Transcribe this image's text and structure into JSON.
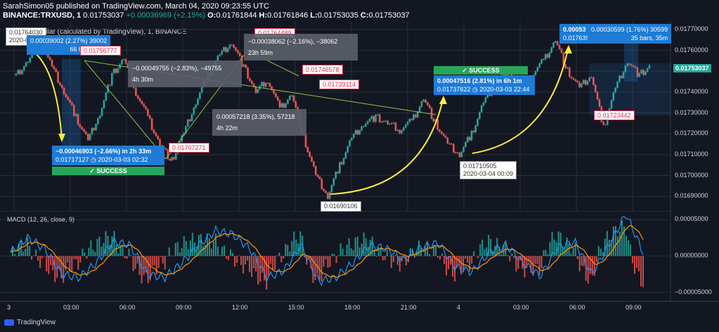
{
  "header": {
    "line1": "SarahSimon05 published on TradingView.com, March 04, 2020 09:23:55 UTC",
    "symbol": "BINANCE:TRXUSD, 1",
    "last": "0.01753037",
    "change": "+0.00036969 (+2.15%)",
    "o_label": "O:",
    "o": "0.01761844",
    "h_label": "H:",
    "h": "0.01761846",
    "l_label": "L:",
    "l": "0.01753035",
    "c_label": "C:",
    "c": "0.01753037",
    "chart_title": "ollar (calculated by TradingView), 1, BINANCE"
  },
  "price_tag": "0.01753037",
  "macd_label": "MACD (12, 26, close, 9)",
  "brand": "TradingView",
  "annotations": {
    "top_left_price": "0.01764030",
    "top_left_date": "2020-03-0",
    "box1_line1": "0.00039002 (2.27%) 39002",
    "box1_line2": "66 bars, 1h 6",
    "red1": "0.01756777",
    "gray1_a": "−0.00049755 (−2.83%), −49755",
    "gray1_b": "4h 30m",
    "red2": "0.01764489",
    "gray2_a": "−0.00038062 (−2.16%), −38062",
    "gray2_b": "23h 59m",
    "red3": "0.01746578",
    "red4": "0.01739114",
    "gray3_a": "0.00057218 (3.35%), 57218",
    "gray3_b": "4h 22m",
    "red5": "0.01707271",
    "blue1_a": "−0.00046903 (−2.66%) in 2h 33m",
    "blue1_b": "0.01717127 ◷ 2020-03-03 02:32",
    "success1": "✓ SUCCESS",
    "low_price": "0.01690106",
    "success2": "✓ SUCCESS",
    "blue2_a": "0.00047516 (2.81%) in 6h 1m",
    "blue2_b": "0.01737622 ◷ 2020-03-03 22:44",
    "low2_price": "0.01710505",
    "low2_date": "2020-03-04 00:09",
    "blue3_a": "0.00053",
    "blue3_b": "0.0176399",
    "blue4_a": "0.00030599 (1.76%) 30599",
    "blue4_b": "35 bars, 35m",
    "red6": "0.01723442"
  },
  "colors": {
    "up": "#26a69a",
    "down": "#ef5350",
    "bg": "#131722",
    "macd": "#2196f3",
    "signal": "#ff9800",
    "arrow": "#ffeb3b"
  },
  "chart_data": [
    {
      "type": "line",
      "title": "",
      "x_ticks": [
        "3",
        "03:00",
        "06:00",
        "09:00",
        "12:00",
        "15:00",
        "18:00",
        "21:00",
        "4",
        "03:00",
        "06:00",
        "09:00"
      ],
      "y_ticks": [
        "0.01770000",
        "0.01760000",
        "0.01750000",
        "0.01740000",
        "0.01730000",
        "0.01720000",
        "0.01710000",
        "0.01700000",
        "0.01690000"
      ],
      "ylim": [
        0.01683,
        0.01774
      ],
      "series": [
        {
          "values": [
            0.01748,
            0.01755,
            0.01764,
            0.01752,
            0.0174,
            0.01728,
            0.01717,
            0.0173,
            0.01748,
            0.01756,
            0.0174,
            0.01728,
            0.01715,
            0.01707,
            0.0172,
            0.01735,
            0.01748,
            0.01758,
            0.01764,
            0.01752,
            0.0174,
            0.01746,
            0.01732,
            0.01739,
            0.01718,
            0.017,
            0.0169,
            0.01705,
            0.01718,
            0.01725,
            0.01728,
            0.01725,
            0.01722,
            0.01726,
            0.01737,
            0.01725,
            0.01715,
            0.0171,
            0.0172,
            0.01735,
            0.01745,
            0.0175,
            0.01742,
            0.01748,
            0.01755,
            0.01765,
            0.0175,
            0.01742,
            0.01748,
            0.01723,
            0.01742,
            0.01755,
            0.01748,
            0.01753
          ]
        }
      ]
    },
    {
      "type": "line",
      "title": "MACD (12, 26, close, 9)",
      "y_ticks": [
        "0.00005000",
        "0.00000000",
        "−0.00005000"
      ],
      "ylim": [
        -6.2e-06,
        6.2e-06
      ],
      "series": [
        {
          "values": [
            5e-07,
            2.5e-06,
            1e-06,
            -2.5e-06,
            -3e-06,
            -1e-06,
            2e-06,
            1.5e-06,
            -2.5e-06,
            -3e-06,
            -1e-06,
            1.5e-06,
            3.5e-06,
            3e-06,
            1e-06,
            -3e-06,
            -2e-06,
            1.5e-06,
            -3.5e-06,
            -3e-06,
            -1e-06,
            1.5e-06,
            1e-06,
            -5e-07,
            1.2e-06,
            1.8e-06,
            -1.5e-06,
            -2.2e-06,
            5e-07,
            1.5e-06,
            -1e-06,
            -2.8e-06,
            1.2e-06,
            2e-06,
            -2.5e-06,
            1.5e-06,
            5.8e-06,
            5e-07
          ]
        }
      ]
    }
  ]
}
